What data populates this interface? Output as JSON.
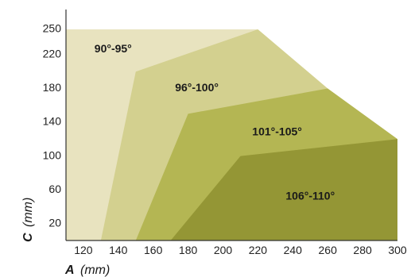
{
  "chart_data": {
    "type": "area",
    "xlabel_var": "A",
    "xlabel_unit": "(mm)",
    "ylabel_var": "C",
    "ylabel_unit": "(mm)",
    "xlim": [
      110,
      300
    ],
    "ylim": [
      0,
      250
    ],
    "x_ticks": [
      120,
      140,
      160,
      180,
      200,
      220,
      240,
      260,
      280,
      300
    ],
    "y_ticks": [
      250,
      220,
      180,
      140,
      100,
      60,
      20
    ],
    "series": [
      {
        "name": "90°-95°",
        "color": "#e8e3bf",
        "polygon": [
          [
            110,
            0
          ],
          [
            110,
            250
          ],
          [
            220,
            250
          ],
          [
            260,
            180
          ],
          [
            300,
            120
          ],
          [
            300,
            0
          ]
        ],
        "label_at": [
          137,
          226
        ]
      },
      {
        "name": "96°-100°",
        "color": "#d3d08f",
        "polygon": [
          [
            130,
            0
          ],
          [
            150,
            200
          ],
          [
            220,
            250
          ],
          [
            260,
            180
          ],
          [
            300,
            120
          ],
          [
            300,
            0
          ]
        ],
        "label_at": [
          185,
          180
        ]
      },
      {
        "name": "101°-105°",
        "color": "#b4b653",
        "polygon": [
          [
            150,
            0
          ],
          [
            180,
            150
          ],
          [
            260,
            180
          ],
          [
            300,
            120
          ],
          [
            300,
            0
          ]
        ],
        "label_at": [
          231,
          128
        ]
      },
      {
        "name": "106°-110°",
        "color": "#949635",
        "polygon": [
          [
            170,
            0
          ],
          [
            210,
            100
          ],
          [
            300,
            120
          ],
          [
            300,
            0
          ]
        ],
        "label_at": [
          250,
          52
        ]
      }
    ]
  }
}
